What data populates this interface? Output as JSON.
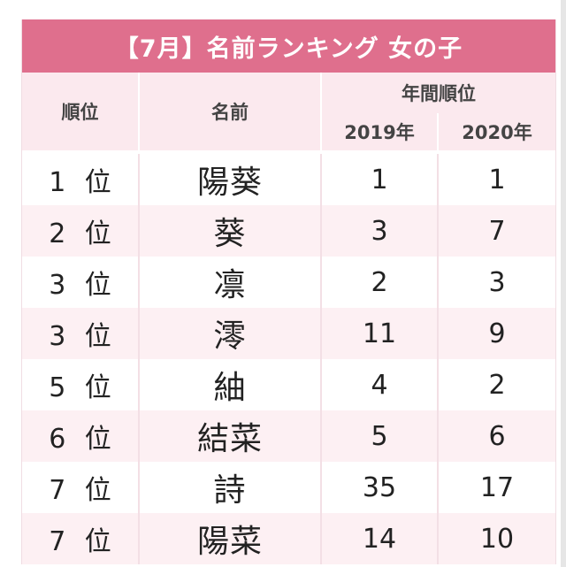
{
  "table": {
    "title": "【7月】名前ランキング 女の子",
    "headers": {
      "rank": "順位",
      "name": "名前",
      "annual": "年間順位",
      "year1": "2019年",
      "year2": "2020年"
    },
    "rows": [
      {
        "rank": "1 位",
        "name": "陽葵",
        "y2019": "1",
        "y2020": "1"
      },
      {
        "rank": "2 位",
        "name": "葵",
        "y2019": "3",
        "y2020": "7"
      },
      {
        "rank": "3 位",
        "name": "凛",
        "y2019": "2",
        "y2020": "3"
      },
      {
        "rank": "3 位",
        "name": "澪",
        "y2019": "11",
        "y2020": "9"
      },
      {
        "rank": "5 位",
        "name": "紬",
        "y2019": "4",
        "y2020": "2"
      },
      {
        "rank": "6 位",
        "name": "結菜",
        "y2019": "5",
        "y2020": "6"
      },
      {
        "rank": "7 位",
        "name": "詩",
        "y2019": "35",
        "y2020": "17"
      },
      {
        "rank": "7 位",
        "name": "陽菜",
        "y2019": "14",
        "y2020": "10"
      }
    ]
  },
  "colors": {
    "title_bg": "#df6f8d",
    "header_bg": "#fbe9ee",
    "alt_row_bg": "#fdf0f3"
  }
}
